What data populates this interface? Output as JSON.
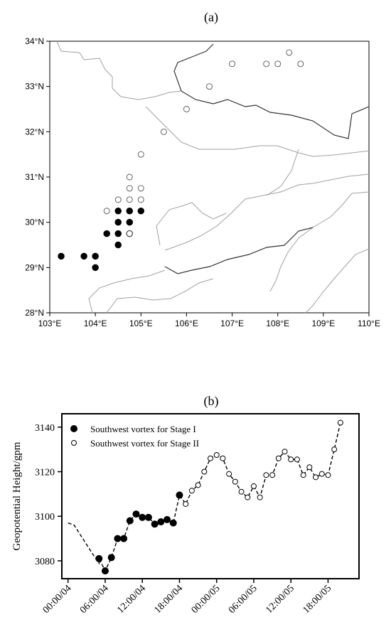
{
  "panels": {
    "a_label": "(a)",
    "b_label": "(b)"
  },
  "legend": {
    "stage1": "Southwest vortex for Stage I",
    "stage2": "Southwest vortex for Stage II"
  },
  "chart_data": [
    {
      "type": "scatter",
      "title": "",
      "x_ticks": [
        "103°E",
        "104°E",
        "105°E",
        "106°E",
        "107°E",
        "108°E",
        "109°E",
        "110°E"
      ],
      "y_ticks": [
        "28°N",
        "29°N",
        "30°N",
        "31°N",
        "32°N",
        "33°N",
        "34°N"
      ],
      "xlim": [
        103,
        110
      ],
      "ylim": [
        28,
        34
      ],
      "series": [
        {
          "marker": "filled",
          "points": [
            [
              103.25,
              29.25
            ],
            [
              103.75,
              29.25
            ],
            [
              104.0,
              29.25
            ],
            [
              104.0,
              29.0
            ],
            [
              104.25,
              29.75
            ],
            [
              104.5,
              29.75
            ],
            [
              104.5,
              29.5
            ],
            [
              104.5,
              30.0
            ],
            [
              104.5,
              30.25
            ],
            [
              104.75,
              30.25
            ],
            [
              104.75,
              30.0
            ],
            [
              104.75,
              29.75
            ],
            [
              105.0,
              30.25
            ]
          ]
        },
        {
          "marker": "open",
          "points": [
            [
              104.25,
              30.25
            ],
            [
              104.5,
              30.5
            ],
            [
              104.75,
              30.5
            ],
            [
              104.75,
              30.75
            ],
            [
              104.75,
              31.0
            ],
            [
              104.75,
              29.75
            ],
            [
              105.0,
              30.5
            ],
            [
              105.0,
              30.75
            ],
            [
              105.0,
              31.5
            ],
            [
              105.5,
              32.0
            ],
            [
              106.0,
              32.5
            ],
            [
              106.5,
              33.0
            ],
            [
              107.0,
              33.5
            ],
            [
              107.75,
              33.5
            ],
            [
              108.0,
              33.5
            ],
            [
              108.25,
              33.75
            ],
            [
              108.5,
              33.5
            ]
          ]
        }
      ]
    },
    {
      "type": "line",
      "title": "",
      "xlabel": "",
      "ylabel": "Geopotential Height/gpm",
      "x_ticks": [
        "00:00/04",
        "06:00/04",
        "12:00/04",
        "18:00/04",
        "00:00/05",
        "06:00/05",
        "12:00/05",
        "18:00/05"
      ],
      "y_ticks": [
        "3080",
        "3100",
        "3120",
        "3140"
      ],
      "ylim": [
        3072,
        3146
      ],
      "x_hours_range": [
        -1,
        47
      ],
      "background_line": [
        [
          0,
          3097
        ],
        [
          1,
          3096
        ],
        [
          4,
          3083
        ],
        [
          5,
          3079
        ]
      ],
      "series": [
        {
          "name": "Southwest vortex for Stage I",
          "marker": "filled",
          "points": [
            [
              5,
              3081
            ],
            [
              6,
              3075.5
            ],
            [
              7,
              3081.5
            ],
            [
              8,
              3090
            ],
            [
              9,
              3090
            ],
            [
              10,
              3098
            ],
            [
              11,
              3101
            ],
            [
              12,
              3099.5
            ],
            [
              13,
              3099.5
            ],
            [
              14,
              3096.5
            ],
            [
              15,
              3097.5
            ],
            [
              16,
              3098.5
            ],
            [
              17,
              3097
            ],
            [
              18,
              3109.5
            ]
          ]
        },
        {
          "name": "Southwest vortex for Stage II",
          "marker": "open",
          "points": [
            [
              19,
              3105.5
            ],
            [
              20,
              3111.5
            ],
            [
              21,
              3114
            ],
            [
              22,
              3120
            ],
            [
              23,
              3126
            ],
            [
              24,
              3127.5
            ],
            [
              25,
              3126
            ],
            [
              26,
              3119
            ],
            [
              27,
              3115.5
            ],
            [
              28,
              3111
            ],
            [
              29,
              3108.5
            ],
            [
              30,
              3113.5
            ],
            [
              31,
              3108.5
            ],
            [
              32,
              3118.5
            ],
            [
              33,
              3118.5
            ],
            [
              34,
              3126
            ],
            [
              35,
              3129
            ],
            [
              36,
              3125.5
            ],
            [
              37,
              3125.5
            ],
            [
              38,
              3118.5
            ],
            [
              39,
              3122
            ],
            [
              40,
              3117.5
            ],
            [
              41,
              3119
            ],
            [
              42,
              3118.5
            ],
            [
              43,
              3130
            ],
            [
              44,
              3142
            ]
          ]
        }
      ]
    }
  ]
}
